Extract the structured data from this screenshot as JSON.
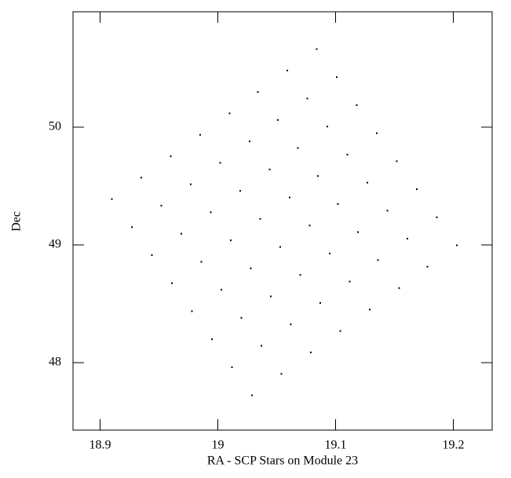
{
  "chart_data": {
    "type": "scatter",
    "xlabel": "RA - SCP Stars on Module 23",
    "ylabel": "Dec",
    "color": "#000000",
    "xlim": [
      18.877,
      19.233
    ],
    "ylim": [
      47.427,
      50.98
    ],
    "xticks": [
      18.9,
      19,
      19.1,
      19.2
    ],
    "yticks": [
      48,
      49,
      50
    ],
    "x": [
      18.91,
      18.927,
      18.944,
      18.961,
      18.978,
      18.995,
      19.012,
      19.029,
      18.935,
      18.952,
      18.969,
      18.986,
      19.003,
      19.02,
      19.037,
      19.054,
      18.96,
      18.977,
      18.994,
      19.011,
      19.028,
      19.045,
      19.062,
      19.079,
      18.985,
      19.002,
      19.019,
      19.036,
      19.053,
      19.07,
      19.087,
      19.104,
      19.01,
      19.027,
      19.044,
      19.061,
      19.078,
      19.095,
      19.112,
      19.129,
      19.034,
      19.051,
      19.068,
      19.085,
      19.102,
      19.119,
      19.136,
      19.154,
      19.059,
      19.076,
      19.093,
      19.11,
      19.127,
      19.144,
      19.161,
      19.178,
      19.084,
      19.101,
      19.118,
      19.135,
      19.152,
      19.169,
      19.186,
      19.203
    ],
    "y": [
      49.389,
      49.151,
      48.913,
      48.675,
      48.437,
      48.199,
      47.961,
      47.723,
      49.571,
      49.333,
      49.095,
      48.857,
      48.619,
      48.381,
      48.143,
      47.905,
      49.753,
      49.515,
      49.277,
      49.039,
      48.801,
      48.563,
      48.325,
      48.087,
      49.935,
      49.697,
      49.459,
      49.221,
      48.983,
      48.745,
      48.507,
      48.269,
      50.117,
      49.879,
      49.641,
      49.403,
      49.165,
      48.927,
      48.689,
      48.451,
      50.299,
      50.061,
      49.823,
      49.585,
      49.347,
      49.109,
      48.871,
      48.633,
      50.481,
      50.243,
      50.005,
      49.767,
      49.529,
      49.291,
      49.053,
      48.815,
      50.663,
      50.425,
      50.187,
      49.949,
      49.711,
      49.473,
      49.235,
      48.997
    ]
  }
}
